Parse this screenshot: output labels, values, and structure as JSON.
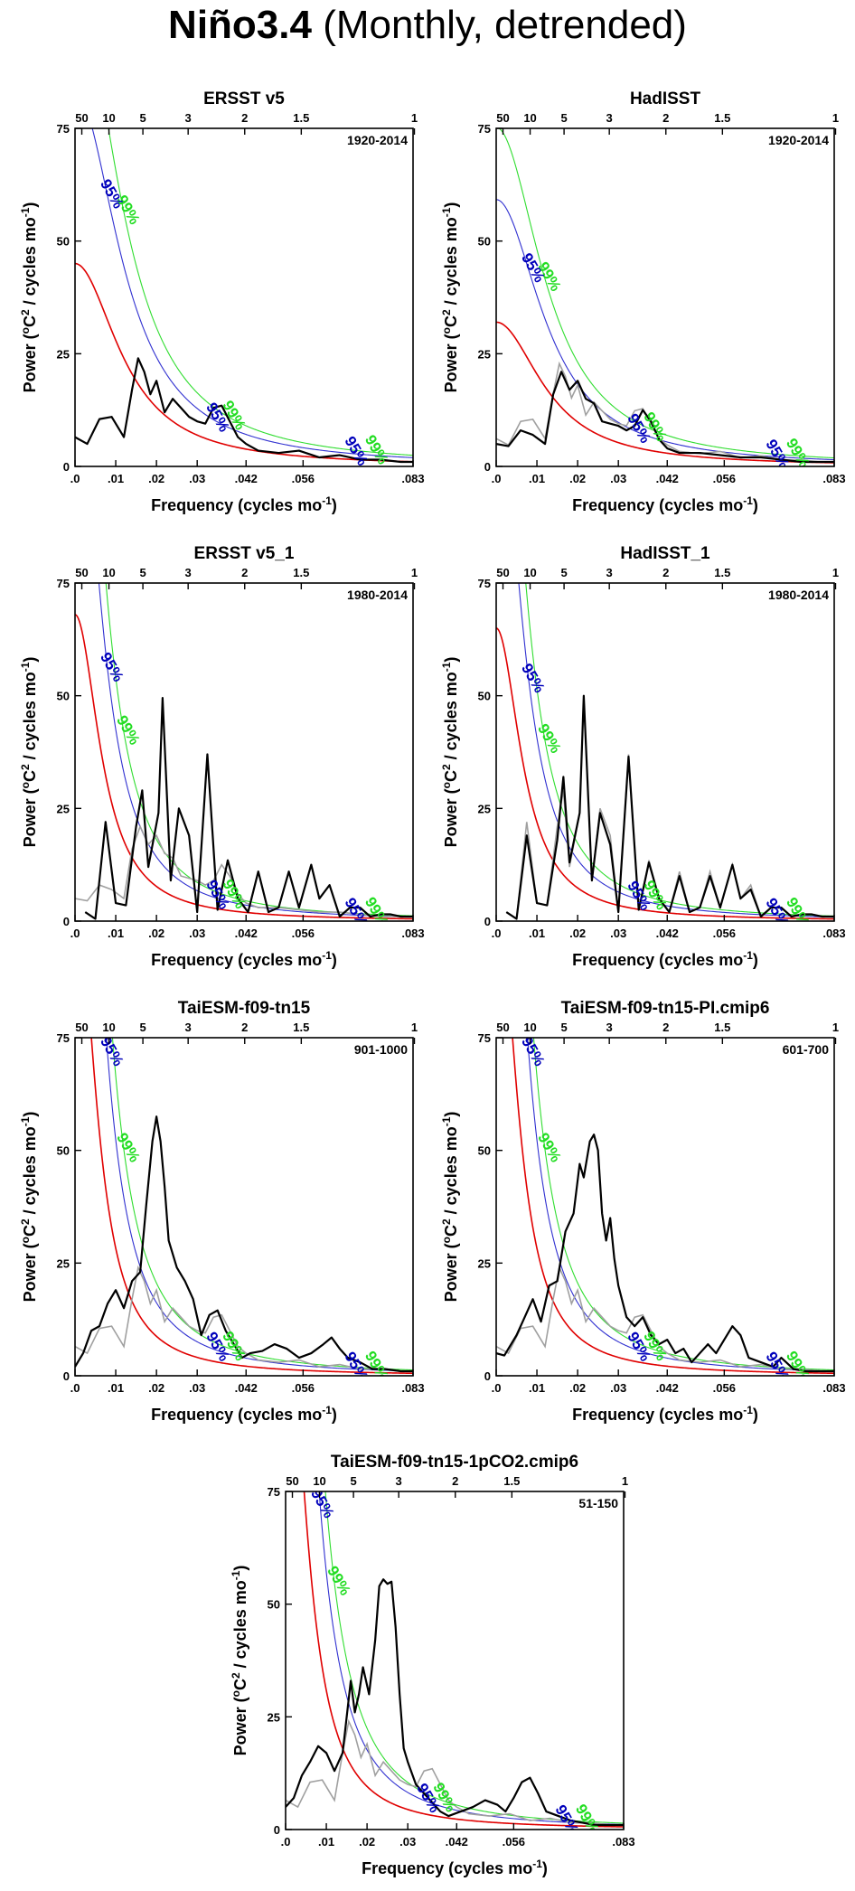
{
  "figure_title_main": "Niño3.4 ",
  "figure_title_rest": "(Monthly, detrended)",
  "x_axis_label": "Frequency (cycles mo",
  "x_axis_label_sup": "-1",
  "y_axis_label_pre": "Power (",
  "y_axis_label_deg": "o",
  "y_axis_label_c": "C",
  "y_axis_label_sq": "2",
  "y_axis_label_mid": " / cycles mo",
  "y_axis_label_sup": "-1",
  "y_axis_label_end": ")",
  "colors": {
    "spectrum": "#000000",
    "reference": "#a0a0a0",
    "red_noise": "#e00000",
    "conf95": "#3030d0",
    "conf99": "#30dd30",
    "label95": "#0000bb",
    "label99": "#22dd22"
  },
  "chart_data": [
    {
      "type": "line",
      "title": "ERSST v5",
      "period": "1920-2014",
      "conf95_label": "95%",
      "conf99_label": "99%",
      "ylim": [
        0,
        75
      ],
      "xlim": [
        0,
        0.083
      ],
      "x_ticks": [
        ".0",
        ".01",
        ".02",
        ".03",
        ".042",
        ".056",
        ".083"
      ],
      "y_ticks": [
        "0",
        "25",
        "50",
        "75"
      ],
      "top_ticks": [
        "50",
        "10",
        "5",
        "3",
        "2",
        "1.5",
        "1"
      ],
      "red_noise_r0": 45,
      "red_noise_decay": 78,
      "spectrum": [
        [
          0,
          6.5
        ],
        [
          0.003,
          5
        ],
        [
          0.006,
          10.5
        ],
        [
          0.009,
          11
        ],
        [
          0.012,
          6.5
        ],
        [
          0.014,
          17
        ],
        [
          0.0155,
          24
        ],
        [
          0.017,
          21
        ],
        [
          0.0185,
          16
        ],
        [
          0.02,
          19
        ],
        [
          0.022,
          12
        ],
        [
          0.024,
          15
        ],
        [
          0.026,
          13
        ],
        [
          0.028,
          11
        ],
        [
          0.03,
          10
        ],
        [
          0.032,
          9.5
        ],
        [
          0.034,
          13
        ],
        [
          0.036,
          13.5
        ],
        [
          0.038,
          10
        ],
        [
          0.04,
          6.5
        ],
        [
          0.042,
          5
        ],
        [
          0.045,
          3.5
        ],
        [
          0.05,
          3
        ],
        [
          0.055,
          3.5
        ],
        [
          0.06,
          2
        ],
        [
          0.065,
          2.5
        ],
        [
          0.07,
          1.5
        ],
        [
          0.075,
          1.5
        ],
        [
          0.08,
          1
        ],
        [
          0.083,
          1
        ]
      ]
    },
    {
      "type": "line",
      "title": "HadISST",
      "period": "1920-2014",
      "conf95_label": "95%",
      "conf99_label": "99%",
      "ylim": [
        0,
        75
      ],
      "xlim": [
        0,
        0.083
      ],
      "x_ticks": [
        ".0",
        ".01",
        ".02",
        ".03",
        ".042",
        ".056",
        ".083"
      ],
      "y_ticks": [
        "0",
        "25",
        "50",
        "75"
      ],
      "top_ticks": [
        "50",
        "10",
        "5",
        "3",
        "2",
        "1.5",
        "1"
      ],
      "red_noise_r0": 32,
      "red_noise_decay": 75,
      "spectrum": [
        [
          0,
          5
        ],
        [
          0.003,
          4.5
        ],
        [
          0.006,
          8
        ],
        [
          0.009,
          7
        ],
        [
          0.012,
          5
        ],
        [
          0.014,
          16
        ],
        [
          0.016,
          21
        ],
        [
          0.018,
          17
        ],
        [
          0.02,
          19
        ],
        [
          0.022,
          15
        ],
        [
          0.024,
          14
        ],
        [
          0.026,
          10
        ],
        [
          0.028,
          9.5
        ],
        [
          0.03,
          9
        ],
        [
          0.032,
          8
        ],
        [
          0.034,
          9
        ],
        [
          0.036,
          12.5
        ],
        [
          0.038,
          10
        ],
        [
          0.04,
          6
        ],
        [
          0.042,
          4
        ],
        [
          0.045,
          3
        ],
        [
          0.05,
          3
        ],
        [
          0.055,
          2.5
        ],
        [
          0.06,
          2
        ],
        [
          0.065,
          2
        ],
        [
          0.07,
          1.5
        ],
        [
          0.075,
          1
        ],
        [
          0.08,
          1
        ],
        [
          0.083,
          1
        ]
      ]
    },
    {
      "type": "line",
      "title": "ERSST v5_1",
      "period": "1980-2014",
      "conf95_label": "95%",
      "conf99_label": "99%",
      "ylim": [
        0,
        75
      ],
      "xlim": [
        0,
        0.083
      ],
      "x_ticks": [
        ".0",
        ".01",
        ".02",
        ".03",
        ".042",
        ".056",
        ".083"
      ],
      "y_ticks": [
        "0",
        "25",
        "50",
        "75"
      ],
      "top_ticks": [
        "50",
        "10",
        "5",
        "3",
        "2",
        "1.5",
        "1"
      ],
      "red_noise_r0": 68,
      "red_noise_decay": 140,
      "spectrum": [
        [
          0.0025,
          2
        ],
        [
          0.005,
          0.5
        ],
        [
          0.0075,
          22
        ],
        [
          0.01,
          4
        ],
        [
          0.0125,
          3.5
        ],
        [
          0.015,
          21
        ],
        [
          0.0165,
          29
        ],
        [
          0.018,
          12
        ],
        [
          0.0205,
          24
        ],
        [
          0.0215,
          49.5
        ],
        [
          0.0235,
          9
        ],
        [
          0.0255,
          25
        ],
        [
          0.028,
          19
        ],
        [
          0.03,
          2
        ],
        [
          0.0325,
          37
        ],
        [
          0.035,
          2.5
        ],
        [
          0.0375,
          13.5
        ],
        [
          0.04,
          5
        ],
        [
          0.0425,
          2
        ],
        [
          0.045,
          11
        ],
        [
          0.0475,
          2
        ],
        [
          0.05,
          3
        ],
        [
          0.0525,
          11
        ],
        [
          0.055,
          3
        ],
        [
          0.058,
          12.5
        ],
        [
          0.06,
          5
        ],
        [
          0.0625,
          8
        ],
        [
          0.065,
          1
        ],
        [
          0.0675,
          3
        ],
        [
          0.07,
          3
        ],
        [
          0.0725,
          1
        ],
        [
          0.075,
          1.5
        ],
        [
          0.0775,
          1.5
        ],
        [
          0.08,
          1
        ],
        [
          0.083,
          1
        ]
      ]
    },
    {
      "type": "line",
      "title": "HadISST_1",
      "period": "1980-2014",
      "conf95_label": "95%",
      "conf99_label": "99%",
      "ylim": [
        0,
        75
      ],
      "xlim": [
        0,
        0.083
      ],
      "x_ticks": [
        ".0",
        ".01",
        ".02",
        ".03",
        ".042",
        ".056",
        ".083"
      ],
      "y_ticks": [
        "0",
        "25",
        "50",
        "75"
      ],
      "top_ticks": [
        "50",
        "10",
        "5",
        "3",
        "2",
        "1.5",
        "1"
      ],
      "red_noise_r0": 65,
      "red_noise_decay": 140,
      "spectrum": [
        [
          0.0025,
          2
        ],
        [
          0.005,
          0.5
        ],
        [
          0.0075,
          19
        ],
        [
          0.01,
          4
        ],
        [
          0.0125,
          3.5
        ],
        [
          0.015,
          18
        ],
        [
          0.0165,
          32
        ],
        [
          0.018,
          13
        ],
        [
          0.0205,
          24
        ],
        [
          0.0215,
          50
        ],
        [
          0.0235,
          9
        ],
        [
          0.0255,
          24
        ],
        [
          0.028,
          17
        ],
        [
          0.03,
          2
        ],
        [
          0.0325,
          36.5
        ],
        [
          0.035,
          2.5
        ],
        [
          0.0375,
          13
        ],
        [
          0.04,
          5
        ],
        [
          0.0425,
          2
        ],
        [
          0.045,
          10
        ],
        [
          0.0475,
          2
        ],
        [
          0.05,
          3
        ],
        [
          0.0525,
          10
        ],
        [
          0.055,
          3
        ],
        [
          0.058,
          12.5
        ],
        [
          0.06,
          5
        ],
        [
          0.0625,
          7
        ],
        [
          0.065,
          1
        ],
        [
          0.0675,
          3
        ],
        [
          0.07,
          3
        ],
        [
          0.0725,
          1
        ],
        [
          0.075,
          1.5
        ],
        [
          0.0775,
          1.5
        ],
        [
          0.08,
          1
        ],
        [
          0.083,
          1
        ]
      ]
    },
    {
      "type": "line",
      "title": "TaiESM-f09-tn15",
      "period": "901-1000",
      "conf95_label": "95%",
      "conf99_label": "99%",
      "ylim": [
        0,
        75
      ],
      "xlim": [
        0,
        0.083
      ],
      "x_ticks": [
        ".0",
        ".01",
        ".02",
        ".03",
        ".042",
        ".056",
        ".083"
      ],
      "y_ticks": [
        "0",
        "25",
        "50",
        "75"
      ],
      "top_ticks": [
        "50",
        "10",
        "5",
        "3",
        "2",
        "1.5",
        "1"
      ],
      "red_noise_r0": 110,
      "red_noise_decay": 170,
      "spectrum": [
        [
          0,
          2
        ],
        [
          0.002,
          5
        ],
        [
          0.004,
          10
        ],
        [
          0.006,
          11
        ],
        [
          0.008,
          16
        ],
        [
          0.01,
          19
        ],
        [
          0.012,
          15
        ],
        [
          0.014,
          21
        ],
        [
          0.016,
          23
        ],
        [
          0.0175,
          38
        ],
        [
          0.019,
          52
        ],
        [
          0.02,
          57.5
        ],
        [
          0.021,
          52
        ],
        [
          0.022,
          42
        ],
        [
          0.023,
          30
        ],
        [
          0.025,
          24
        ],
        [
          0.027,
          21
        ],
        [
          0.029,
          17
        ],
        [
          0.031,
          9
        ],
        [
          0.033,
          13.5
        ],
        [
          0.035,
          14.5
        ],
        [
          0.037,
          10
        ],
        [
          0.039,
          7
        ],
        [
          0.041,
          4
        ],
        [
          0.043,
          5
        ],
        [
          0.046,
          5.5
        ],
        [
          0.049,
          7
        ],
        [
          0.052,
          6
        ],
        [
          0.055,
          4
        ],
        [
          0.058,
          5
        ],
        [
          0.061,
          7
        ],
        [
          0.063,
          8.5
        ],
        [
          0.065,
          6
        ],
        [
          0.067,
          4
        ],
        [
          0.07,
          3
        ],
        [
          0.073,
          1.5
        ],
        [
          0.076,
          1.5
        ],
        [
          0.08,
          1
        ],
        [
          0.083,
          1
        ]
      ]
    },
    {
      "type": "line",
      "title": "TaiESM-f09-tn15-PI.cmip6",
      "period": "601-700",
      "conf95_label": "95%",
      "conf99_label": "99%",
      "ylim": [
        0,
        75
      ],
      "xlim": [
        0,
        0.083
      ],
      "x_ticks": [
        ".0",
        ".01",
        ".02",
        ".03",
        ".042",
        ".056",
        ".083"
      ],
      "y_ticks": [
        "0",
        "25",
        "50",
        "75"
      ],
      "top_ticks": [
        "50",
        "10",
        "5",
        "3",
        "2",
        "1.5",
        "1"
      ],
      "red_noise_r0": 110,
      "red_noise_decay": 170,
      "spectrum": [
        [
          0,
          5
        ],
        [
          0.002,
          4.5
        ],
        [
          0.005,
          9
        ],
        [
          0.007,
          13
        ],
        [
          0.009,
          17
        ],
        [
          0.011,
          12
        ],
        [
          0.013,
          20
        ],
        [
          0.015,
          21
        ],
        [
          0.017,
          32
        ],
        [
          0.019,
          36
        ],
        [
          0.0205,
          47
        ],
        [
          0.0215,
          44
        ],
        [
          0.023,
          52
        ],
        [
          0.024,
          53.5
        ],
        [
          0.025,
          50
        ],
        [
          0.026,
          36
        ],
        [
          0.027,
          30
        ],
        [
          0.028,
          35
        ],
        [
          0.029,
          26
        ],
        [
          0.03,
          20
        ],
        [
          0.032,
          13
        ],
        [
          0.034,
          11
        ],
        [
          0.036,
          13
        ],
        [
          0.038,
          9
        ],
        [
          0.04,
          7
        ],
        [
          0.042,
          8
        ],
        [
          0.044,
          5
        ],
        [
          0.046,
          6
        ],
        [
          0.048,
          3
        ],
        [
          0.05,
          5
        ],
        [
          0.052,
          7
        ],
        [
          0.054,
          5
        ],
        [
          0.056,
          8
        ],
        [
          0.058,
          11
        ],
        [
          0.06,
          9
        ],
        [
          0.062,
          4
        ],
        [
          0.065,
          3
        ],
        [
          0.068,
          2
        ],
        [
          0.07,
          4
        ],
        [
          0.073,
          1.5
        ],
        [
          0.076,
          1
        ],
        [
          0.08,
          1
        ],
        [
          0.083,
          1
        ]
      ]
    },
    {
      "type": "line",
      "title": "TaiESM-f09-tn15-1pCO2.cmip6",
      "period": "51-150",
      "conf95_label": "95%",
      "conf99_label": "99%",
      "ylim": [
        0,
        75
      ],
      "xlim": [
        0,
        0.083
      ],
      "x_ticks": [
        ".0",
        ".01",
        ".02",
        ".03",
        ".042",
        ".056",
        ".083"
      ],
      "y_ticks": [
        "0",
        "25",
        "50",
        "75"
      ],
      "top_ticks": [
        "50",
        "10",
        "5",
        "3",
        "2",
        "1.5",
        "1"
      ],
      "red_noise_r0": 120,
      "red_noise_decay": 170,
      "spectrum": [
        [
          0,
          5
        ],
        [
          0.002,
          7
        ],
        [
          0.004,
          12
        ],
        [
          0.006,
          15
        ],
        [
          0.008,
          18.5
        ],
        [
          0.01,
          17
        ],
        [
          0.012,
          13
        ],
        [
          0.014,
          17
        ],
        [
          0.016,
          33
        ],
        [
          0.017,
          26
        ],
        [
          0.018,
          30
        ],
        [
          0.019,
          36
        ],
        [
          0.0205,
          30
        ],
        [
          0.022,
          42
        ],
        [
          0.023,
          54
        ],
        [
          0.024,
          55.5
        ],
        [
          0.025,
          54.5
        ],
        [
          0.026,
          55
        ],
        [
          0.027,
          45
        ],
        [
          0.028,
          30
        ],
        [
          0.029,
          18
        ],
        [
          0.03,
          15
        ],
        [
          0.032,
          10
        ],
        [
          0.034,
          8
        ],
        [
          0.036,
          6
        ],
        [
          0.038,
          4
        ],
        [
          0.04,
          3
        ],
        [
          0.043,
          4
        ],
        [
          0.046,
          5
        ],
        [
          0.049,
          6.5
        ],
        [
          0.052,
          5.5
        ],
        [
          0.054,
          4
        ],
        [
          0.056,
          7
        ],
        [
          0.058,
          10.5
        ],
        [
          0.06,
          11.5
        ],
        [
          0.062,
          8
        ],
        [
          0.064,
          4
        ],
        [
          0.067,
          3
        ],
        [
          0.07,
          2
        ],
        [
          0.073,
          1.5
        ],
        [
          0.076,
          1
        ],
        [
          0.08,
          1
        ],
        [
          0.083,
          1
        ]
      ]
    }
  ]
}
